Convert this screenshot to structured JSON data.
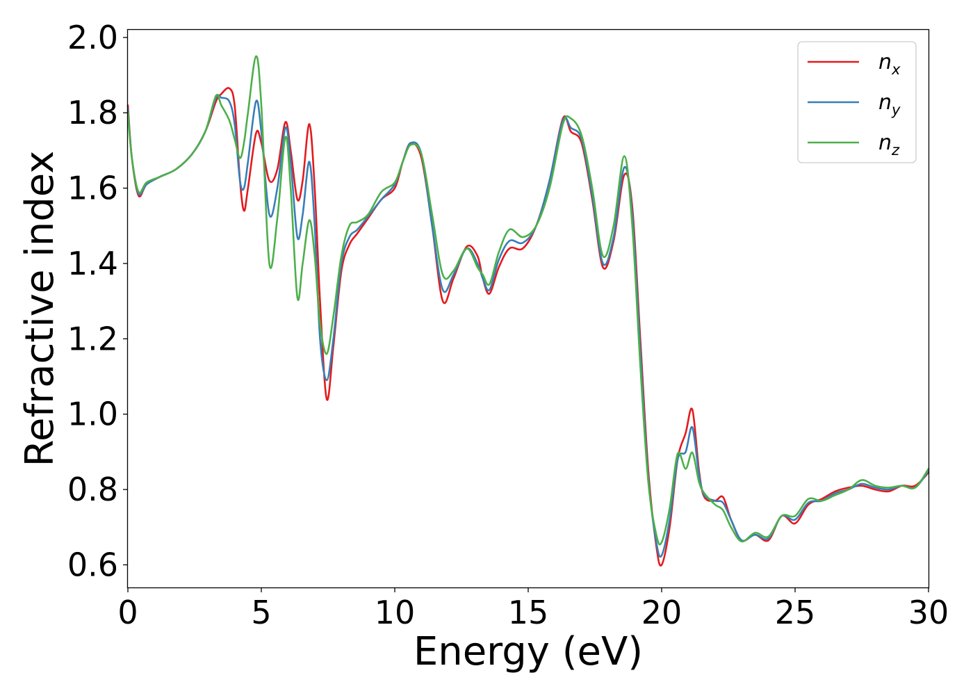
{
  "chart_data": {
    "type": "line",
    "title": "",
    "xlabel": "Energy (eV)",
    "ylabel": "Refractive index",
    "xlim": [
      0,
      30
    ],
    "ylim": [
      0.54,
      2.02
    ],
    "xticks": [
      0,
      5,
      10,
      15,
      20,
      25,
      30
    ],
    "xtick_labels": [
      "0",
      "5",
      "10",
      "15",
      "20",
      "25",
      "30"
    ],
    "yticks": [
      0.6,
      0.8,
      1.0,
      1.2,
      1.4,
      1.6,
      1.8,
      2.0
    ],
    "ytick_labels": [
      "0.6",
      "0.8",
      "1.0",
      "1.2",
      "1.4",
      "1.6",
      "1.8",
      "2.0"
    ],
    "grid": false,
    "legend_position": "top-right",
    "series": [
      {
        "name": "n_x",
        "legend_main": "n",
        "legend_sub": "x",
        "color": "#e41a1c",
        "points": [
          [
            0,
            1.82
          ],
          [
            0.15,
            1.68
          ],
          [
            0.4,
            1.58
          ],
          [
            0.7,
            1.61
          ],
          [
            1.2,
            1.63
          ],
          [
            1.8,
            1.65
          ],
          [
            2.4,
            1.69
          ],
          [
            2.9,
            1.75
          ],
          [
            3.3,
            1.83
          ],
          [
            3.5,
            1.85
          ],
          [
            3.8,
            1.865
          ],
          [
            4.0,
            1.82
          ],
          [
            4.2,
            1.62
          ],
          [
            4.35,
            1.54
          ],
          [
            4.5,
            1.6
          ],
          [
            4.8,
            1.745
          ],
          [
            5.0,
            1.72
          ],
          [
            5.3,
            1.62
          ],
          [
            5.6,
            1.65
          ],
          [
            5.9,
            1.775
          ],
          [
            6.1,
            1.7
          ],
          [
            6.35,
            1.57
          ],
          [
            6.55,
            1.62
          ],
          [
            6.8,
            1.77
          ],
          [
            7.0,
            1.6
          ],
          [
            7.2,
            1.3
          ],
          [
            7.45,
            1.04
          ],
          [
            7.7,
            1.18
          ],
          [
            8.0,
            1.38
          ],
          [
            8.3,
            1.45
          ],
          [
            8.6,
            1.48
          ],
          [
            9.0,
            1.52
          ],
          [
            9.5,
            1.57
          ],
          [
            10.0,
            1.6
          ],
          [
            10.3,
            1.67
          ],
          [
            10.6,
            1.72
          ],
          [
            11.0,
            1.68
          ],
          [
            11.4,
            1.5
          ],
          [
            11.8,
            1.3
          ],
          [
            12.2,
            1.36
          ],
          [
            12.7,
            1.445
          ],
          [
            13.1,
            1.42
          ],
          [
            13.3,
            1.36
          ],
          [
            13.55,
            1.32
          ],
          [
            13.9,
            1.39
          ],
          [
            14.3,
            1.44
          ],
          [
            14.8,
            1.44
          ],
          [
            15.3,
            1.5
          ],
          [
            15.8,
            1.62
          ],
          [
            16.3,
            1.785
          ],
          [
            16.6,
            1.75
          ],
          [
            17.0,
            1.72
          ],
          [
            17.4,
            1.57
          ],
          [
            17.8,
            1.39
          ],
          [
            18.2,
            1.46
          ],
          [
            18.6,
            1.635
          ],
          [
            18.9,
            1.55
          ],
          [
            19.2,
            1.2
          ],
          [
            19.5,
            0.85
          ],
          [
            19.8,
            0.65
          ],
          [
            20.0,
            0.6
          ],
          [
            20.3,
            0.7
          ],
          [
            20.6,
            0.88
          ],
          [
            20.9,
            0.95
          ],
          [
            21.15,
            1.012
          ],
          [
            21.4,
            0.85
          ],
          [
            21.6,
            0.78
          ],
          [
            22.0,
            0.77
          ],
          [
            22.3,
            0.78
          ],
          [
            22.6,
            0.72
          ],
          [
            23.0,
            0.665
          ],
          [
            23.5,
            0.68
          ],
          [
            24.0,
            0.665
          ],
          [
            24.5,
            0.73
          ],
          [
            25.0,
            0.71
          ],
          [
            25.5,
            0.76
          ],
          [
            26.0,
            0.775
          ],
          [
            26.5,
            0.795
          ],
          [
            27.0,
            0.805
          ],
          [
            27.5,
            0.81
          ],
          [
            28.0,
            0.8
          ],
          [
            28.5,
            0.795
          ],
          [
            29.0,
            0.81
          ],
          [
            29.5,
            0.81
          ],
          [
            30.0,
            0.845
          ]
        ]
      },
      {
        "name": "n_y",
        "legend_main": "n",
        "legend_sub": "y",
        "color": "#377eb8",
        "points": [
          [
            0,
            1.81
          ],
          [
            0.15,
            1.68
          ],
          [
            0.4,
            1.585
          ],
          [
            0.7,
            1.61
          ],
          [
            1.2,
            1.63
          ],
          [
            1.8,
            1.65
          ],
          [
            2.4,
            1.69
          ],
          [
            2.9,
            1.75
          ],
          [
            3.3,
            1.84
          ],
          [
            3.5,
            1.84
          ],
          [
            3.8,
            1.83
          ],
          [
            4.0,
            1.77
          ],
          [
            4.2,
            1.62
          ],
          [
            4.35,
            1.6
          ],
          [
            4.5,
            1.67
          ],
          [
            4.8,
            1.83
          ],
          [
            5.0,
            1.75
          ],
          [
            5.3,
            1.53
          ],
          [
            5.6,
            1.6
          ],
          [
            5.9,
            1.76
          ],
          [
            6.1,
            1.67
          ],
          [
            6.35,
            1.47
          ],
          [
            6.55,
            1.53
          ],
          [
            6.8,
            1.67
          ],
          [
            7.0,
            1.5
          ],
          [
            7.2,
            1.2
          ],
          [
            7.45,
            1.09
          ],
          [
            7.7,
            1.2
          ],
          [
            8.0,
            1.4
          ],
          [
            8.3,
            1.47
          ],
          [
            8.6,
            1.49
          ],
          [
            9.0,
            1.525
          ],
          [
            9.5,
            1.57
          ],
          [
            10.0,
            1.61
          ],
          [
            10.3,
            1.67
          ],
          [
            10.6,
            1.72
          ],
          [
            11.0,
            1.69
          ],
          [
            11.4,
            1.5
          ],
          [
            11.8,
            1.33
          ],
          [
            12.2,
            1.37
          ],
          [
            12.7,
            1.44
          ],
          [
            13.1,
            1.4
          ],
          [
            13.3,
            1.36
          ],
          [
            13.55,
            1.33
          ],
          [
            13.9,
            1.41
          ],
          [
            14.3,
            1.46
          ],
          [
            14.8,
            1.455
          ],
          [
            15.3,
            1.5
          ],
          [
            15.8,
            1.62
          ],
          [
            16.3,
            1.78
          ],
          [
            16.6,
            1.76
          ],
          [
            17.0,
            1.73
          ],
          [
            17.4,
            1.58
          ],
          [
            17.8,
            1.4
          ],
          [
            18.2,
            1.47
          ],
          [
            18.6,
            1.655
          ],
          [
            18.9,
            1.53
          ],
          [
            19.2,
            1.17
          ],
          [
            19.5,
            0.83
          ],
          [
            19.8,
            0.66
          ],
          [
            20.0,
            0.625
          ],
          [
            20.3,
            0.72
          ],
          [
            20.6,
            0.88
          ],
          [
            20.9,
            0.9
          ],
          [
            21.15,
            0.965
          ],
          [
            21.4,
            0.84
          ],
          [
            21.6,
            0.785
          ],
          [
            22.0,
            0.77
          ],
          [
            22.3,
            0.765
          ],
          [
            22.6,
            0.72
          ],
          [
            23.0,
            0.665
          ],
          [
            23.5,
            0.68
          ],
          [
            24.0,
            0.67
          ],
          [
            24.5,
            0.73
          ],
          [
            25.0,
            0.72
          ],
          [
            25.5,
            0.765
          ],
          [
            26.0,
            0.77
          ],
          [
            26.5,
            0.79
          ],
          [
            27.0,
            0.8
          ],
          [
            27.5,
            0.815
          ],
          [
            28.0,
            0.805
          ],
          [
            28.5,
            0.8
          ],
          [
            29.0,
            0.81
          ],
          [
            29.5,
            0.805
          ],
          [
            30.0,
            0.85
          ]
        ]
      },
      {
        "name": "n_z",
        "legend_main": "n",
        "legend_sub": "z",
        "color": "#4daf4a",
        "points": [
          [
            0,
            1.8
          ],
          [
            0.15,
            1.68
          ],
          [
            0.4,
            1.59
          ],
          [
            0.7,
            1.615
          ],
          [
            1.2,
            1.63
          ],
          [
            1.8,
            1.65
          ],
          [
            2.4,
            1.69
          ],
          [
            2.9,
            1.75
          ],
          [
            3.3,
            1.845
          ],
          [
            3.5,
            1.82
          ],
          [
            3.8,
            1.78
          ],
          [
            4.0,
            1.73
          ],
          [
            4.2,
            1.68
          ],
          [
            4.35,
            1.72
          ],
          [
            4.5,
            1.8
          ],
          [
            4.8,
            1.95
          ],
          [
            5.0,
            1.82
          ],
          [
            5.3,
            1.4
          ],
          [
            5.6,
            1.52
          ],
          [
            5.9,
            1.735
          ],
          [
            6.1,
            1.6
          ],
          [
            6.35,
            1.31
          ],
          [
            6.55,
            1.4
          ],
          [
            6.8,
            1.515
          ],
          [
            7.0,
            1.42
          ],
          [
            7.2,
            1.24
          ],
          [
            7.45,
            1.16
          ],
          [
            7.7,
            1.26
          ],
          [
            8.0,
            1.42
          ],
          [
            8.3,
            1.5
          ],
          [
            8.6,
            1.51
          ],
          [
            9.0,
            1.53
          ],
          [
            9.5,
            1.59
          ],
          [
            10.0,
            1.615
          ],
          [
            10.3,
            1.67
          ],
          [
            10.6,
            1.715
          ],
          [
            11.0,
            1.69
          ],
          [
            11.4,
            1.53
          ],
          [
            11.8,
            1.37
          ],
          [
            12.2,
            1.38
          ],
          [
            12.7,
            1.44
          ],
          [
            13.1,
            1.39
          ],
          [
            13.3,
            1.37
          ],
          [
            13.55,
            1.345
          ],
          [
            13.9,
            1.43
          ],
          [
            14.3,
            1.49
          ],
          [
            14.8,
            1.47
          ],
          [
            15.3,
            1.5
          ],
          [
            15.8,
            1.6
          ],
          [
            16.3,
            1.77
          ],
          [
            16.6,
            1.785
          ],
          [
            17.0,
            1.74
          ],
          [
            17.4,
            1.6
          ],
          [
            17.8,
            1.42
          ],
          [
            18.2,
            1.5
          ],
          [
            18.6,
            1.685
          ],
          [
            18.9,
            1.5
          ],
          [
            19.2,
            1.13
          ],
          [
            19.5,
            0.82
          ],
          [
            19.8,
            0.68
          ],
          [
            20.0,
            0.66
          ],
          [
            20.3,
            0.75
          ],
          [
            20.6,
            0.895
          ],
          [
            20.9,
            0.855
          ],
          [
            21.15,
            0.898
          ],
          [
            21.4,
            0.82
          ],
          [
            21.6,
            0.79
          ],
          [
            22.0,
            0.76
          ],
          [
            22.3,
            0.745
          ],
          [
            22.6,
            0.7
          ],
          [
            23.0,
            0.662
          ],
          [
            23.5,
            0.685
          ],
          [
            24.0,
            0.675
          ],
          [
            24.5,
            0.73
          ],
          [
            25.0,
            0.73
          ],
          [
            25.5,
            0.775
          ],
          [
            26.0,
            0.77
          ],
          [
            26.5,
            0.785
          ],
          [
            27.0,
            0.8
          ],
          [
            27.5,
            0.825
          ],
          [
            28.0,
            0.81
          ],
          [
            28.5,
            0.805
          ],
          [
            29.0,
            0.81
          ],
          [
            29.5,
            0.805
          ],
          [
            30.0,
            0.855
          ]
        ]
      }
    ]
  }
}
